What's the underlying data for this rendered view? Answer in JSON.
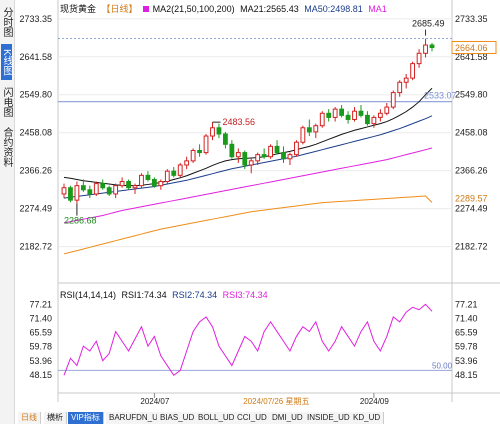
{
  "side_tabs": [
    "分时图",
    "K线图",
    "闪电图",
    "合约资料"
  ],
  "header": {
    "name": "现货黄金",
    "period": "【日线】",
    "ma_label": "MA2(21,50,100,200)",
    "ma21": "MA21:2565.43",
    "ma50": "MA50:2498.81",
    "ma1": "MA1"
  },
  "colors": {
    "up": "#d42020",
    "down": "#1a9a1a",
    "ma21": "#111111",
    "ma50": "#1c3d8c",
    "ma100": "#e020e0",
    "ma200": "#f08c18",
    "rsi": "#e020e0",
    "accent": "#2f6fd1"
  },
  "price_axis": [
    "2733.35",
    "2641.58",
    "2549.80",
    "2458.08",
    "2366.26",
    "2274.49",
    "2182.72"
  ],
  "annotations": {
    "high": "2685.49",
    "last": "2664.06",
    "level_2533": "2533.07",
    "peak": "2483.56",
    "low": "2286.68",
    "ma200_last": "2289.57"
  },
  "rsi": {
    "header": "RSI(14,14,14)",
    "rsi1": "RSI1:74.34",
    "rsi2": "RSI2:74.34",
    "rsi3": "RSI3:74.34",
    "axis": [
      "77.21",
      "71.40",
      "65.59",
      "59.78",
      "53.96",
      "48.15"
    ],
    "level_50": "50.00"
  },
  "time_axis": {
    "jul": "2024/07",
    "cursor": "2024/07/26 星期五",
    "sep": "2024/09"
  },
  "bottom_tabs": [
    "日线",
    "横析",
    "VIP指标",
    "BARUFDN_UD",
    "BIAS_UD",
    "BOLL_UD",
    "CCI_UD",
    "DMI_UD",
    "INSIDE_UD",
    "KD_UD"
  ],
  "chart_data": {
    "type": "candlestick",
    "title": "现货黄金 日线",
    "ylim": [
      2160,
      2745
    ],
    "ohlc": [
      [
        2310,
        2335,
        2300,
        2325
      ],
      [
        2325,
        2330,
        2290,
        2295
      ],
      [
        2295,
        2340,
        2286.68,
        2330
      ],
      [
        2330,
        2345,
        2315,
        2320
      ],
      [
        2320,
        2330,
        2300,
        2310
      ],
      [
        2310,
        2340,
        2305,
        2335
      ],
      [
        2335,
        2345,
        2320,
        2325
      ],
      [
        2325,
        2330,
        2305,
        2310
      ],
      [
        2310,
        2335,
        2300,
        2330
      ],
      [
        2330,
        2350,
        2325,
        2340
      ],
      [
        2340,
        2345,
        2320,
        2325
      ],
      [
        2325,
        2335,
        2310,
        2330
      ],
      [
        2330,
        2360,
        2325,
        2355
      ],
      [
        2355,
        2365,
        2340,
        2345
      ],
      [
        2345,
        2350,
        2325,
        2330
      ],
      [
        2330,
        2345,
        2320,
        2340
      ],
      [
        2340,
        2370,
        2335,
        2365
      ],
      [
        2365,
        2375,
        2350,
        2355
      ],
      [
        2355,
        2385,
        2350,
        2380
      ],
      [
        2380,
        2400,
        2370,
        2390
      ],
      [
        2390,
        2420,
        2385,
        2415
      ],
      [
        2415,
        2430,
        2400,
        2410
      ],
      [
        2410,
        2455,
        2405,
        2450
      ],
      [
        2450,
        2483.56,
        2440,
        2470
      ],
      [
        2470,
        2480,
        2445,
        2455
      ],
      [
        2455,
        2460,
        2420,
        2430
      ],
      [
        2430,
        2440,
        2395,
        2400
      ],
      [
        2400,
        2420,
        2385,
        2410
      ],
      [
        2410,
        2415,
        2370,
        2380
      ],
      [
        2380,
        2395,
        2360,
        2390
      ],
      [
        2390,
        2410,
        2380,
        2405
      ],
      [
        2405,
        2420,
        2395,
        2400
      ],
      [
        2400,
        2430,
        2395,
        2425
      ],
      [
        2425,
        2440,
        2405,
        2410
      ],
      [
        2410,
        2425,
        2385,
        2395
      ],
      [
        2395,
        2410,
        2380,
        2405
      ],
      [
        2405,
        2440,
        2400,
        2435
      ],
      [
        2435,
        2475,
        2430,
        2470
      ],
      [
        2470,
        2490,
        2450,
        2460
      ],
      [
        2460,
        2480,
        2445,
        2475
      ],
      [
        2475,
        2510,
        2470,
        2505
      ],
      [
        2505,
        2515,
        2485,
        2495
      ],
      [
        2495,
        2520,
        2485,
        2515
      ],
      [
        2515,
        2525,
        2495,
        2500
      ],
      [
        2500,
        2510,
        2480,
        2490
      ],
      [
        2490,
        2520,
        2485,
        2510
      ],
      [
        2510,
        2525,
        2495,
        2500
      ],
      [
        2500,
        2510,
        2475,
        2480
      ],
      [
        2480,
        2500,
        2470,
        2495
      ],
      [
        2495,
        2515,
        2485,
        2505
      ],
      [
        2505,
        2530,
        2500,
        2520
      ],
      [
        2520,
        2560,
        2515,
        2555
      ],
      [
        2555,
        2585,
        2545,
        2580
      ],
      [
        2580,
        2600,
        2565,
        2590
      ],
      [
        2590,
        2630,
        2585,
        2625
      ],
      [
        2625,
        2660,
        2615,
        2650
      ],
      [
        2650,
        2685.49,
        2640,
        2670
      ],
      [
        2670,
        2675,
        2655,
        2664.06
      ]
    ],
    "ma21": [
      2350,
      2348,
      2345,
      2342,
      2340,
      2338,
      2336,
      2334,
      2332,
      2331,
      2330,
      2330,
      2331,
      2333,
      2335,
      2338,
      2341,
      2345,
      2349,
      2354,
      2360,
      2366,
      2372,
      2379,
      2385,
      2390,
      2393,
      2395,
      2396,
      2397,
      2398,
      2400,
      2403,
      2407,
      2410,
      2413,
      2417,
      2421,
      2425,
      2430,
      2436,
      2442,
      2448,
      2454,
      2459,
      2464,
      2468,
      2472,
      2476,
      2480,
      2485,
      2492,
      2500,
      2509,
      2520,
      2533,
      2550,
      2565.43
    ],
    "ma50": [
      2300,
      2302,
      2304,
      2306,
      2308,
      2310,
      2312,
      2314,
      2316,
      2318,
      2320,
      2322,
      2324,
      2326,
      2328,
      2331,
      2334,
      2337,
      2340,
      2343,
      2347,
      2351,
      2355,
      2359,
      2363,
      2367,
      2371,
      2374,
      2377,
      2380,
      2383,
      2386,
      2389,
      2392,
      2395,
      2398,
      2401,
      2405,
      2409,
      2413,
      2417,
      2421,
      2425,
      2429,
      2433,
      2437,
      2441,
      2445,
      2449,
      2453,
      2458,
      2463,
      2468,
      2474,
      2480,
      2486,
      2492,
      2498.81
    ],
    "ma100": [
      2240,
      2243,
      2246,
      2249,
      2252,
      2255,
      2258,
      2262,
      2266,
      2270,
      2273,
      2276,
      2279,
      2282,
      2285,
      2288,
      2291,
      2294,
      2297,
      2300,
      2303,
      2306,
      2309,
      2312,
      2315,
      2318,
      2321,
      2324,
      2327,
      2330,
      2333,
      2336,
      2339,
      2342,
      2345,
      2348,
      2351,
      2354,
      2357,
      2360,
      2363,
      2366,
      2369,
      2372,
      2375,
      2378,
      2381,
      2384,
      2387,
      2390,
      2393,
      2397,
      2401,
      2405,
      2409,
      2413,
      2417,
      2421
    ],
    "ma200": [
      2165,
      2169,
      2173,
      2177,
      2181,
      2185,
      2189,
      2193,
      2197,
      2201,
      2205,
      2209,
      2213,
      2217,
      2221,
      2225,
      2228,
      2231,
      2234,
      2237,
      2240,
      2243,
      2246,
      2249,
      2252,
      2255,
      2258,
      2261,
      2264,
      2267,
      2269,
      2271,
      2273,
      2275,
      2277,
      2279,
      2281,
      2283,
      2285,
      2287,
      2289,
      2290,
      2291,
      2292,
      2293,
      2294,
      2295,
      2296,
      2297,
      2298,
      2299,
      2300,
      2301,
      2302,
      2303,
      2304,
      2305,
      2289.57
    ],
    "rsi_ylim": [
      44,
      79
    ],
    "rsi_values": [
      48,
      55,
      52,
      60,
      58,
      62,
      54,
      57,
      66,
      62,
      58,
      63,
      68,
      60,
      64,
      56,
      52,
      48,
      50,
      58,
      66,
      70,
      72,
      68,
      60,
      56,
      52,
      58,
      64,
      62,
      58,
      66,
      70,
      66,
      62,
      58,
      64,
      68,
      66,
      70,
      62,
      58,
      62,
      68,
      64,
      60,
      66,
      70,
      62,
      58,
      64,
      72,
      70,
      74,
      76,
      75,
      77.21,
      74.34
    ]
  }
}
